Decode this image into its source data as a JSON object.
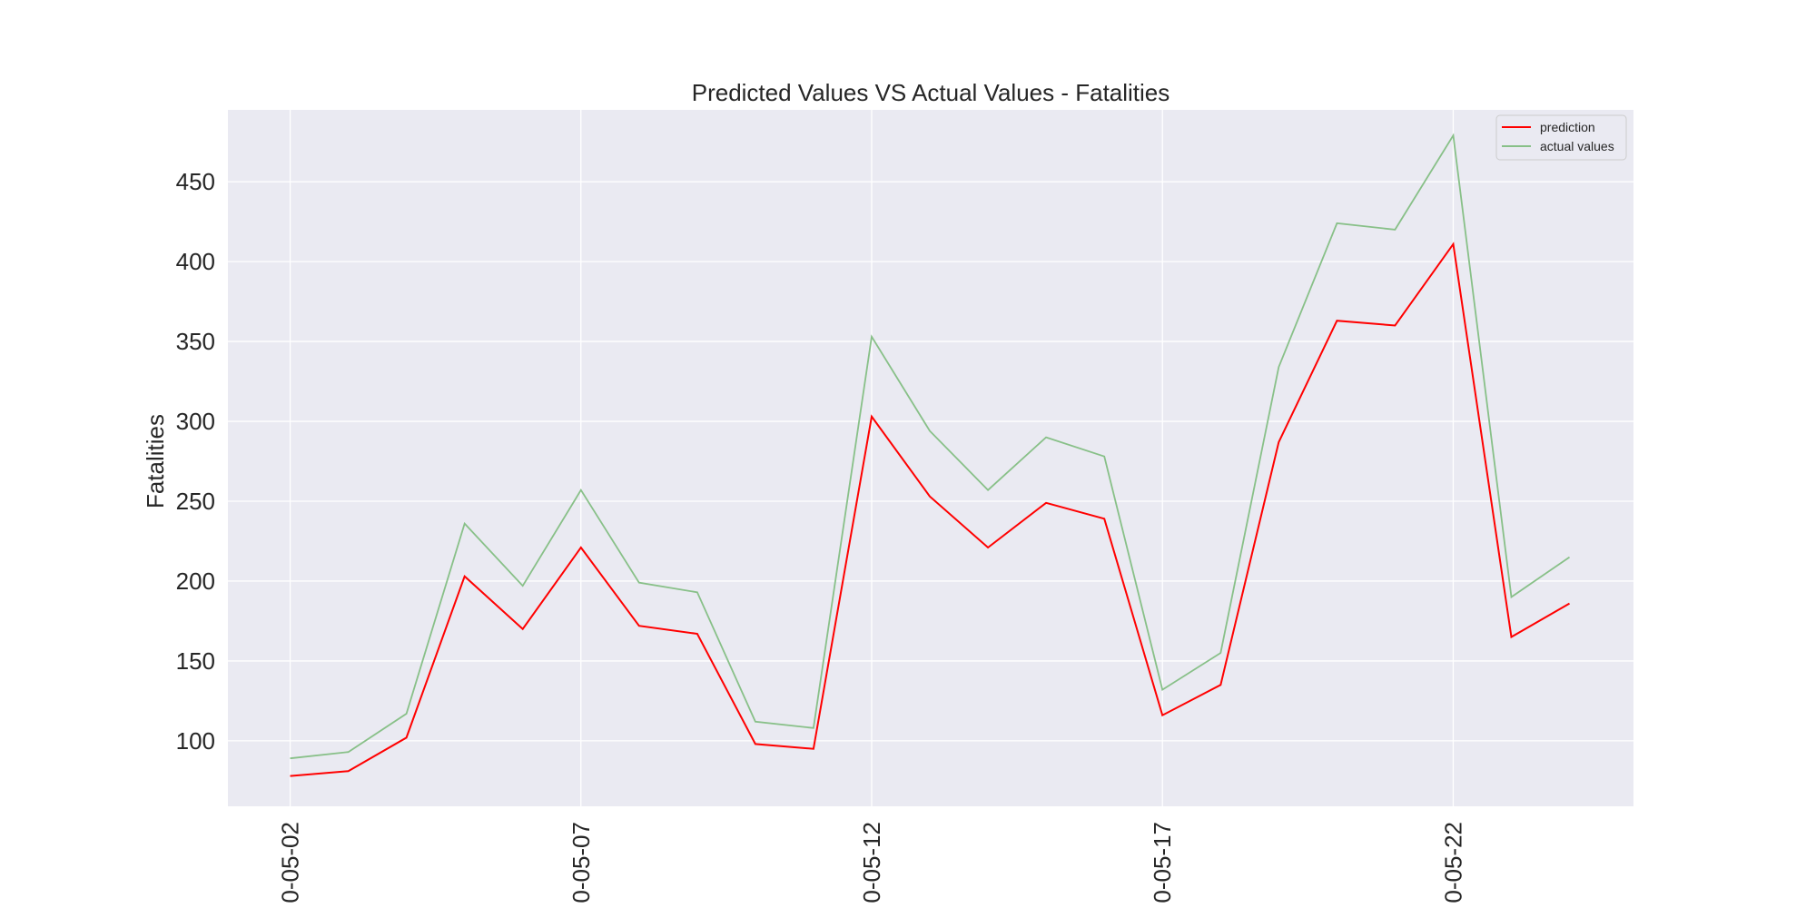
{
  "chart_data": {
    "type": "line",
    "title": "Predicted Values VS Actual Values - Fatalities",
    "xlabel": "",
    "ylabel": "Fatalities",
    "x_tick_labels": [
      "0-05-02",
      "0-05-07",
      "0-05-12",
      "0-05-17",
      "0-05-22"
    ],
    "x_tick_positions": [
      0,
      5,
      10,
      15,
      20
    ],
    "x": [
      0,
      1,
      2,
      3,
      4,
      5,
      6,
      7,
      8,
      9,
      10,
      11,
      12,
      13,
      14,
      15,
      16,
      17,
      18,
      19,
      20,
      21,
      22
    ],
    "xlim": [
      -1.07,
      23.1
    ],
    "ylim": [
      59,
      495
    ],
    "yticks": [
      100,
      150,
      200,
      250,
      300,
      350,
      400,
      450
    ],
    "grid": true,
    "legend_position": "top-right",
    "series": [
      {
        "name": "prediction",
        "color": "#ff0000",
        "values": [
          78,
          81,
          102,
          203,
          170,
          221,
          172,
          167,
          98,
          95,
          303,
          253,
          221,
          249,
          239,
          116,
          135,
          287,
          363,
          360,
          411,
          165,
          186
        ]
      },
      {
        "name": "actual values",
        "color": "#88c088",
        "values": [
          89,
          93,
          117,
          236,
          197,
          257,
          199,
          193,
          112,
          108,
          353,
          294,
          257,
          290,
          278,
          132,
          155,
          334,
          424,
          420,
          479,
          190,
          215
        ]
      }
    ]
  }
}
